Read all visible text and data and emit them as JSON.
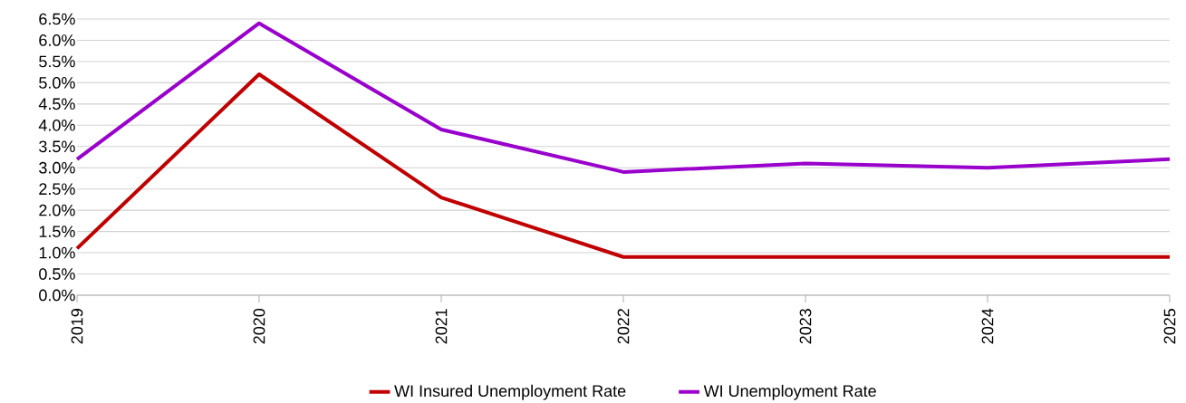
{
  "chart_data": {
    "type": "line",
    "categories": [
      "2019",
      "2020",
      "2021",
      "2022",
      "2023",
      "2024",
      "2025"
    ],
    "series": [
      {
        "name": "WI Insured Unemployment Rate",
        "color": "#c00000",
        "values": [
          1.1,
          5.2,
          2.3,
          0.9,
          0.9,
          0.9,
          0.9
        ]
      },
      {
        "name": "WI Unemployment Rate",
        "color": "#9900cc",
        "values": [
          3.2,
          6.4,
          3.9,
          2.9,
          3.1,
          3.0,
          3.2
        ]
      }
    ],
    "ylim": [
      0,
      6.5
    ],
    "yticks": [
      {
        "value": 0,
        "label": "0.0%"
      },
      {
        "value": 0.5,
        "label": "0.5%"
      },
      {
        "value": 1,
        "label": "1.0%"
      },
      {
        "value": 1.5,
        "label": "1.5%"
      },
      {
        "value": 2,
        "label": "2.0%"
      },
      {
        "value": 2.5,
        "label": "2.5%"
      },
      {
        "value": 3,
        "label": "3.0%"
      },
      {
        "value": 3.5,
        "label": "3.5%"
      },
      {
        "value": 4,
        "label": "4.0%"
      },
      {
        "value": 4.5,
        "label": "4.5%"
      },
      {
        "value": 5,
        "label": "5.0%"
      },
      {
        "value": 5.5,
        "label": "5.5%"
      },
      {
        "value": 6,
        "label": "6.0%"
      },
      {
        "value": 6.5,
        "label": "6.5%"
      }
    ],
    "grid": "y",
    "legend": "bottom",
    "marker": "none",
    "line_style": "solid"
  }
}
